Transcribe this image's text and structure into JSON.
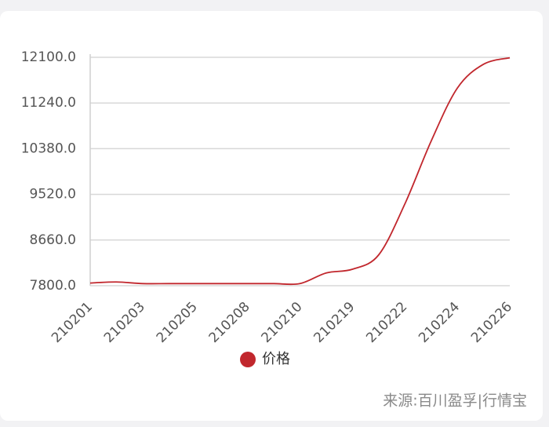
{
  "chart_data": {
    "type": "line",
    "categories": [
      "210201",
      null,
      "210203",
      null,
      "210205",
      null,
      "210208",
      null,
      "210210",
      null,
      "210219",
      null,
      "210222",
      null,
      "210224",
      null,
      "210226"
    ],
    "series": [
      {
        "name": "价格",
        "color": "#c1272d",
        "values": [
          7850,
          7870,
          7840,
          7840,
          7840,
          7840,
          7840,
          7840,
          7840,
          8040,
          8110,
          8380,
          9340,
          10520,
          11520,
          11970,
          12090
        ]
      }
    ],
    "ylim": [
      7800,
      12100
    ],
    "yticks": [
      {
        "value": 7800,
        "label": "7800.0"
      },
      {
        "value": 8660,
        "label": "8660.0"
      },
      {
        "value": 9520,
        "label": "9520.0"
      },
      {
        "value": 10380,
        "label": "10380.0"
      },
      {
        "value": 11240,
        "label": "11240.0"
      },
      {
        "value": 12100,
        "label": "12100.0"
      }
    ],
    "grid": true,
    "source": "来源:百川盈孚|行情宝"
  }
}
